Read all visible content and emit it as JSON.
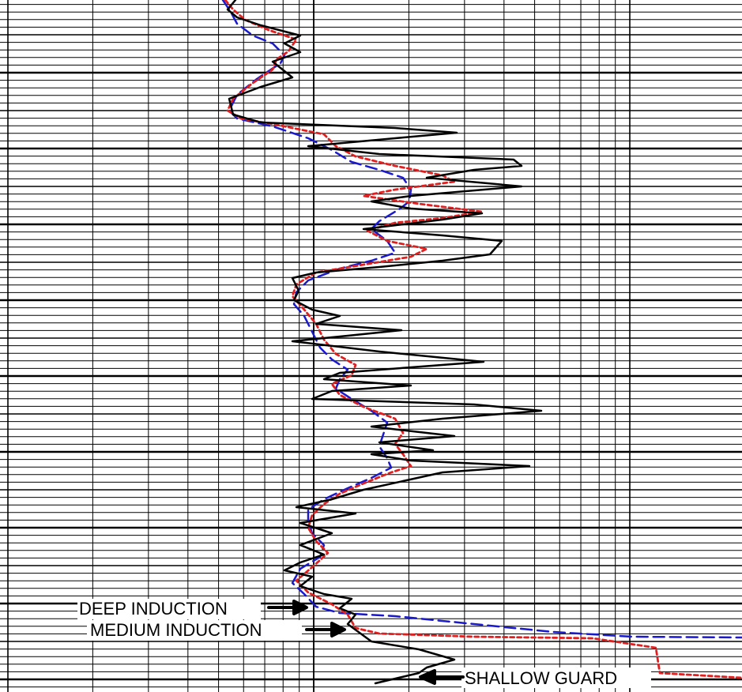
{
  "chart_data": {
    "type": "line",
    "title": "",
    "xlabel": "",
    "ylabel": "",
    "x_scale": "log",
    "grid": true,
    "legend": "none",
    "series": [
      {
        "name": "DEEP INDUCTION",
        "color": "#1a1acc",
        "style": "dashed",
        "points": [
          [
            282,
            0
          ],
          [
            292,
            15
          ],
          [
            300,
            30
          ],
          [
            320,
            45
          ],
          [
            345,
            55
          ],
          [
            360,
            70
          ],
          [
            355,
            80
          ],
          [
            325,
            100
          ],
          [
            300,
            120
          ],
          [
            290,
            140
          ],
          [
            300,
            150
          ],
          [
            345,
            160
          ],
          [
            390,
            175
          ],
          [
            420,
            190
          ],
          [
            445,
            205
          ],
          [
            480,
            215
          ],
          [
            510,
            225
          ],
          [
            520,
            240
          ],
          [
            518,
            255
          ],
          [
            505,
            265
          ],
          [
            480,
            280
          ],
          [
            470,
            290
          ],
          [
            490,
            305
          ],
          [
            500,
            320
          ],
          [
            470,
            330
          ],
          [
            430,
            340
          ],
          [
            390,
            355
          ],
          [
            375,
            370
          ],
          [
            372,
            385
          ],
          [
            385,
            400
          ],
          [
            395,
            420
          ],
          [
            405,
            440
          ],
          [
            420,
            455
          ],
          [
            440,
            468
          ],
          [
            430,
            480
          ],
          [
            425,
            492
          ],
          [
            445,
            505
          ],
          [
            470,
            520
          ],
          [
            490,
            535
          ],
          [
            485,
            550
          ],
          [
            480,
            565
          ],
          [
            490,
            580
          ],
          [
            495,
            592
          ],
          [
            470,
            605
          ],
          [
            440,
            618
          ],
          [
            410,
            632
          ],
          [
            390,
            645
          ],
          [
            390,
            660
          ],
          [
            395,
            675
          ],
          [
            410,
            690
          ],
          [
            405,
            705
          ],
          [
            380,
            720
          ],
          [
            370,
            738
          ],
          [
            385,
            752
          ],
          [
            400,
            768
          ],
          [
            430,
            776
          ],
          [
            500,
            780
          ],
          [
            600,
            790
          ],
          [
            700,
            800
          ],
          [
            800,
            806
          ],
          [
            939,
            807
          ]
        ]
      },
      {
        "name": "MEDIUM INDUCTION",
        "color": "#e02020",
        "style": "dotted",
        "points": [
          [
            285,
            0
          ],
          [
            295,
            12
          ],
          [
            310,
            25
          ],
          [
            340,
            38
          ],
          [
            375,
            50
          ],
          [
            365,
            65
          ],
          [
            350,
            75
          ],
          [
            345,
            88
          ],
          [
            320,
            105
          ],
          [
            295,
            125
          ],
          [
            288,
            140
          ],
          [
            305,
            150
          ],
          [
            350,
            158
          ],
          [
            410,
            170
          ],
          [
            425,
            185
          ],
          [
            450,
            198
          ],
          [
            500,
            210
          ],
          [
            560,
            222
          ],
          [
            575,
            230
          ],
          [
            500,
            240
          ],
          [
            460,
            248
          ],
          [
            530,
            258
          ],
          [
            610,
            268
          ],
          [
            560,
            276
          ],
          [
            500,
            282
          ],
          [
            465,
            292
          ],
          [
            490,
            305
          ],
          [
            540,
            315
          ],
          [
            520,
            325
          ],
          [
            460,
            335
          ],
          [
            400,
            345
          ],
          [
            375,
            360
          ],
          [
            370,
            375
          ],
          [
            385,
            392
          ],
          [
            400,
            410
          ],
          [
            410,
            430
          ],
          [
            425,
            448
          ],
          [
            450,
            462
          ],
          [
            445,
            475
          ],
          [
            420,
            486
          ],
          [
            430,
            500
          ],
          [
            460,
            515
          ],
          [
            500,
            530
          ],
          [
            510,
            548
          ],
          [
            500,
            562
          ],
          [
            510,
            575
          ],
          [
            520,
            590
          ],
          [
            495,
            598
          ],
          [
            460,
            612
          ],
          [
            430,
            625
          ],
          [
            410,
            638
          ],
          [
            395,
            652
          ],
          [
            390,
            668
          ],
          [
            400,
            685
          ],
          [
            415,
            700
          ],
          [
            395,
            718
          ],
          [
            375,
            735
          ],
          [
            390,
            750
          ],
          [
            420,
            765
          ],
          [
            440,
            778
          ],
          [
            450,
            795
          ],
          [
            480,
            802
          ],
          [
            600,
            806
          ],
          [
            750,
            808
          ],
          [
            830,
            820
          ],
          [
            835,
            852
          ],
          [
            939,
            858
          ]
        ]
      },
      {
        "name": "SHALLOW GUARD",
        "color": "#000000",
        "style": "solid",
        "points": [
          [
            298,
            0
          ],
          [
            288,
            12
          ],
          [
            300,
            22
          ],
          [
            330,
            32
          ],
          [
            380,
            45
          ],
          [
            360,
            55
          ],
          [
            380,
            66
          ],
          [
            345,
            78
          ],
          [
            370,
            98
          ],
          [
            330,
            110
          ],
          [
            290,
            125
          ],
          [
            295,
            145
          ],
          [
            330,
            155
          ],
          [
            500,
            162
          ],
          [
            578,
            168
          ],
          [
            500,
            175
          ],
          [
            390,
            185
          ],
          [
            480,
            195
          ],
          [
            650,
            202
          ],
          [
            660,
            210
          ],
          [
            600,
            215
          ],
          [
            540,
            225
          ],
          [
            660,
            236
          ],
          [
            520,
            248
          ],
          [
            470,
            255
          ],
          [
            520,
            264
          ],
          [
            610,
            270
          ],
          [
            560,
            278
          ],
          [
            460,
            290
          ],
          [
            560,
            298
          ],
          [
            635,
            305
          ],
          [
            620,
            322
          ],
          [
            560,
            330
          ],
          [
            480,
            338
          ],
          [
            400,
            345
          ],
          [
            370,
            352
          ],
          [
            378,
            368
          ],
          [
            372,
            380
          ],
          [
            395,
            392
          ],
          [
            430,
            400
          ],
          [
            400,
            410
          ],
          [
            508,
            418
          ],
          [
            440,
            425
          ],
          [
            370,
            432
          ],
          [
            480,
            445
          ],
          [
            612,
            458
          ],
          [
            520,
            465
          ],
          [
            430,
            472
          ],
          [
            410,
            480
          ],
          [
            520,
            488
          ],
          [
            420,
            495
          ],
          [
            395,
            505
          ],
          [
            600,
            512
          ],
          [
            685,
            520
          ],
          [
            560,
            530
          ],
          [
            470,
            540
          ],
          [
            575,
            552
          ],
          [
            480,
            560
          ],
          [
            548,
            570
          ],
          [
            470,
            575
          ],
          [
            520,
            583
          ],
          [
            670,
            590
          ],
          [
            560,
            598
          ],
          [
            460,
            620
          ],
          [
            420,
            632
          ],
          [
            375,
            642
          ],
          [
            450,
            650
          ],
          [
            380,
            662
          ],
          [
            420,
            675
          ],
          [
            380,
            690
          ],
          [
            410,
            702
          ],
          [
            380,
            712
          ],
          [
            360,
            722
          ],
          [
            395,
            730
          ],
          [
            380,
            742
          ],
          [
            410,
            752
          ],
          [
            445,
            758
          ],
          [
            430,
            770
          ],
          [
            450,
            778
          ],
          [
            440,
            790
          ],
          [
            470,
            812
          ],
          [
            530,
            822
          ],
          [
            575,
            835
          ],
          [
            540,
            845
          ],
          [
            530,
            852
          ],
          [
            475,
            865
          ]
        ]
      }
    ],
    "annotations": [
      {
        "text": "DEEP INDUCTION",
        "series": "DEEP INDUCTION"
      },
      {
        "text": "MEDIUM INDUCTION",
        "series": "MEDIUM INDUCTION"
      },
      {
        "text": "SHALLOW GUARD",
        "series": "SHALLOW GUARD"
      }
    ]
  }
}
